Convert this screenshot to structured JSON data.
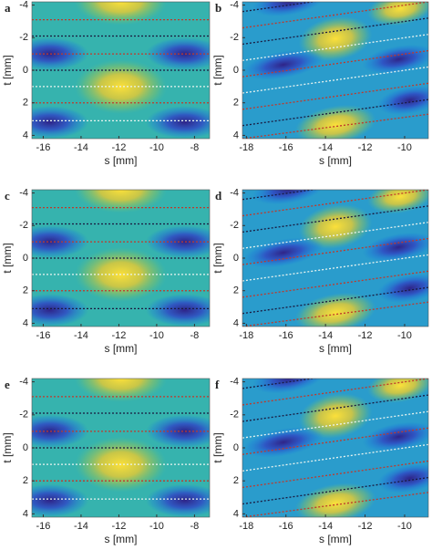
{
  "chart_data": [
    {
      "type": "heatmap",
      "label": "a",
      "xlabel": "s [mm]",
      "ylabel": "t [mm]",
      "xlim": [
        -16.6,
        -7.2
      ],
      "ylim": [
        -4.2,
        4.2
      ],
      "xticks": [
        -16,
        -14,
        -12,
        -10,
        -8
      ],
      "yticks": [
        -4,
        -2,
        0,
        2,
        4
      ],
      "lines": [
        {
          "color": "#c0392b",
          "t": -3.1
        },
        {
          "color": "#1a1a40",
          "t": -2.1
        },
        {
          "color": "#c0392b",
          "t": -1
        },
        {
          "color": "#1a1a40",
          "t": 0
        },
        {
          "color": "#e8f4f0",
          "t": 1
        },
        {
          "color": "#c0392b",
          "t": 2
        },
        {
          "color": "#e8f4f0",
          "t": 3.1
        }
      ]
    },
    {
      "type": "heatmap",
      "label": "b",
      "xlabel": "s [mm]",
      "ylabel": "t [mm]",
      "xlim": [
        -18.2,
        -8.8
      ],
      "ylim": [
        -4.2,
        4.2
      ],
      "xticks": [
        -18,
        -16,
        -14,
        -12,
        -10
      ],
      "yticks": [
        -4,
        -2,
        0,
        2,
        4
      ],
      "lines": [
        {
          "color": "#1a1a40",
          "t0": -3.6,
          "t1": -5.2
        },
        {
          "color": "#c0392b",
          "t0": -2.6,
          "t1": -4.2
        },
        {
          "color": "#1a1a40",
          "t0": -1.6,
          "t1": -3.2
        },
        {
          "color": "#e8f4f0",
          "t0": -0.6,
          "t1": -2.2
        },
        {
          "color": "#c0392b",
          "t0": 0.4,
          "t1": -1.2
        },
        {
          "color": "#e8f4f0",
          "t0": 1.4,
          "t1": -0.2
        },
        {
          "color": "#c0392b",
          "t0": 2.4,
          "t1": 0.8
        },
        {
          "color": "#1a1a40",
          "t0": 3.4,
          "t1": 1.8
        },
        {
          "color": "#c0392b",
          "t0": 4.2,
          "t1": 2.7
        }
      ]
    },
    {
      "type": "heatmap",
      "label": "c",
      "xlabel": "s [mm]",
      "ylabel": "t [mm]",
      "xlim": [
        -16.6,
        -7.2
      ],
      "ylim": [
        -4.2,
        4.2
      ],
      "xticks": [
        -16,
        -14,
        -12,
        -10,
        -8
      ],
      "yticks": [
        -4,
        -2,
        0,
        2,
        4
      ],
      "lines": [
        {
          "color": "#c0392b",
          "t": -3.1
        },
        {
          "color": "#1a1a40",
          "t": -2.1
        },
        {
          "color": "#c0392b",
          "t": -1
        },
        {
          "color": "#1a1a40",
          "t": 0
        },
        {
          "color": "#e8f4f0",
          "t": 1
        },
        {
          "color": "#c0392b",
          "t": 2
        },
        {
          "color": "#1a1a40",
          "t": 3.1
        }
      ]
    },
    {
      "type": "heatmap",
      "label": "d",
      "xlabel": "s [mm]",
      "ylabel": "t [mm]",
      "xlim": [
        -18.2,
        -8.8
      ],
      "ylim": [
        -4.2,
        4.2
      ],
      "xticks": [
        -18,
        -16,
        -14,
        -12,
        -10
      ],
      "yticks": [
        -4,
        -2,
        0,
        2,
        4
      ],
      "lines": [
        {
          "color": "#1a1a40",
          "t0": -3.6,
          "t1": -5.2
        },
        {
          "color": "#c0392b",
          "t0": -2.6,
          "t1": -4.2
        },
        {
          "color": "#1a1a40",
          "t0": -1.6,
          "t1": -3.2
        },
        {
          "color": "#e8f4f0",
          "t0": -0.6,
          "t1": -2.2
        },
        {
          "color": "#c0392b",
          "t0": 0.4,
          "t1": -1.2
        },
        {
          "color": "#e8f4f0",
          "t0": 1.4,
          "t1": -0.2
        },
        {
          "color": "#c0392b",
          "t0": 2.4,
          "t1": 0.8
        },
        {
          "color": "#1a1a40",
          "t0": 3.4,
          "t1": 1.8
        },
        {
          "color": "#c0392b",
          "t0": 4.2,
          "t1": 2.7
        }
      ]
    },
    {
      "type": "heatmap",
      "label": "e",
      "xlabel": "s [mm]",
      "ylabel": "t [mm]",
      "xlim": [
        -16.6,
        -7.2
      ],
      "ylim": [
        -4.2,
        4.2
      ],
      "xticks": [
        -16,
        -14,
        -12,
        -10,
        -8
      ],
      "yticks": [
        -4,
        -2,
        0,
        2,
        4
      ],
      "lines": [
        {
          "color": "#c0392b",
          "t": -3.1
        },
        {
          "color": "#1a1a40",
          "t": -2.1
        },
        {
          "color": "#c0392b",
          "t": -1
        },
        {
          "color": "#1a1a40",
          "t": 0
        },
        {
          "color": "#e8f4f0",
          "t": 1
        },
        {
          "color": "#c0392b",
          "t": 2
        },
        {
          "color": "#e8f4f0",
          "t": 3.1
        }
      ]
    },
    {
      "type": "heatmap",
      "label": "f",
      "xlabel": "s [mm]",
      "ylabel": "t [mm]",
      "xlim": [
        -18.2,
        -8.8
      ],
      "ylim": [
        -4.2,
        4.2
      ],
      "xticks": [
        -18,
        -16,
        -14,
        -12,
        -10
      ],
      "yticks": [
        -4,
        -2,
        0,
        2,
        4
      ],
      "lines": [
        {
          "color": "#1a1a40",
          "t0": -3.6,
          "t1": -5.2
        },
        {
          "color": "#c0392b",
          "t0": -2.6,
          "t1": -4.2
        },
        {
          "color": "#1a1a40",
          "t0": -1.6,
          "t1": -3.2
        },
        {
          "color": "#e8f4f0",
          "t0": -0.6,
          "t1": -2.2
        },
        {
          "color": "#c0392b",
          "t0": 0.4,
          "t1": -1.2
        },
        {
          "color": "#e8f4f0",
          "t0": 1.4,
          "t1": -0.2
        },
        {
          "color": "#c0392b",
          "t0": 2.4,
          "t1": 0.8
        },
        {
          "color": "#1a1a40",
          "t0": 3.4,
          "t1": 1.8
        },
        {
          "color": "#c0392b",
          "t0": 4.2,
          "t1": 2.7
        }
      ]
    }
  ]
}
